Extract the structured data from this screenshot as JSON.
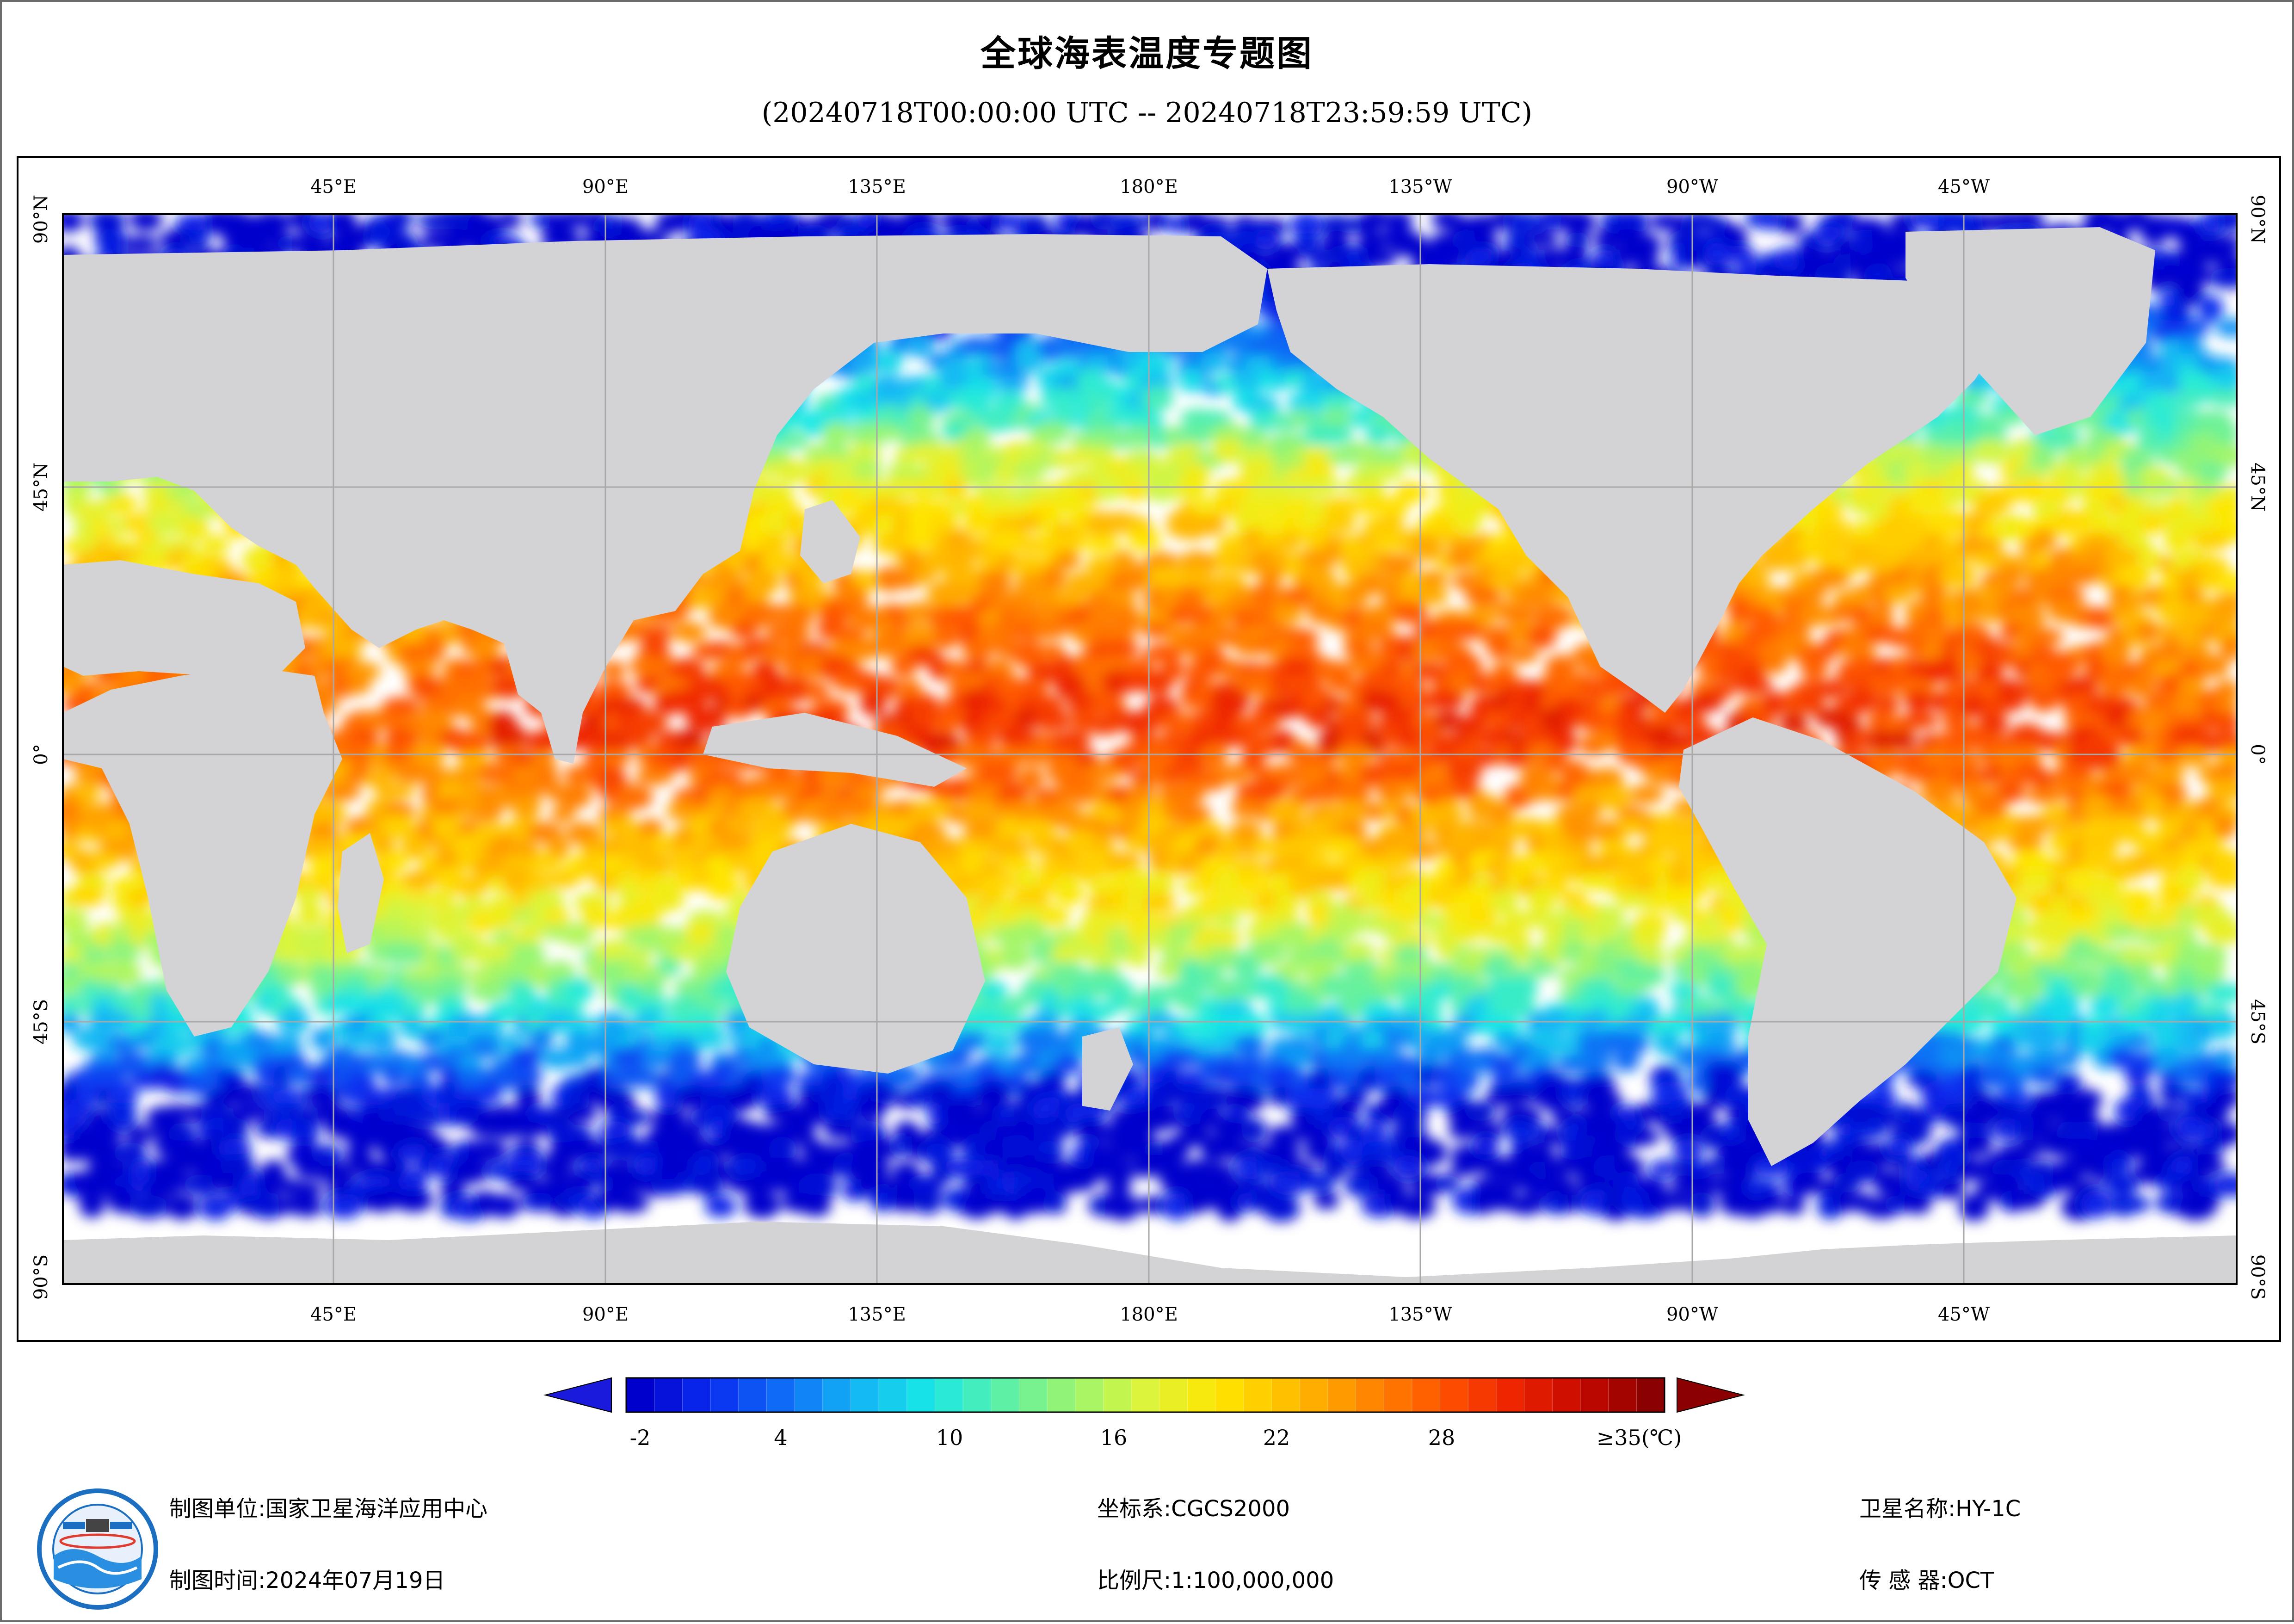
{
  "header": {
    "title": "全球海表温度专题图",
    "subtitle": "(20240718T00:00:00 UTC -- 20240718T23:59:59 UTC)"
  },
  "map": {
    "lon_labels_top": [
      "45°E",
      "90°E",
      "135°E",
      "180°E",
      "135°W",
      "90°W",
      "45°W"
    ],
    "lon_labels_bottom": [
      "45°E",
      "90°E",
      "135°E",
      "180°E",
      "135°W",
      "90°W",
      "45°W"
    ],
    "lat_labels_left": [
      "90°N",
      "45°N",
      "0°",
      "45°S",
      "90°S"
    ],
    "lat_labels_right": [
      "90°N",
      "45°N",
      "0°",
      "45°S",
      "90°S"
    ],
    "colors": {
      "land": "#d3d3d5",
      "no_data": "#ffffff",
      "grid": "#a8a8a8"
    }
  },
  "colorbar": {
    "tick_labels": [
      "-2",
      "4",
      "10",
      "16",
      "22",
      "28",
      "≥35(℃)"
    ],
    "tick_values": [
      -2,
      4,
      10,
      16,
      22,
      28,
      35
    ],
    "min": -2,
    "max": 35,
    "unit": "℃",
    "palette": [
      "#0000cc",
      "#0a2ef0",
      "#0f6ef5",
      "#12b4f5",
      "#17e8e6",
      "#5af0a8",
      "#9cf56e",
      "#dcf53c",
      "#ffe600",
      "#ffbe00",
      "#ff8c00",
      "#ff5a00",
      "#f02800",
      "#c80a00",
      "#8b0000"
    ]
  },
  "footer": {
    "unit_label": "制图单位:国家卫星海洋应用中心",
    "time_label": "制图时间:2024年07月19日",
    "crs_label": "坐标系:CGCS2000",
    "scale_label": "比例尺:1:100,000,000",
    "satellite_label": "卫星名称:HY-1C",
    "sensor_label": "传 感 器:OCT"
  }
}
